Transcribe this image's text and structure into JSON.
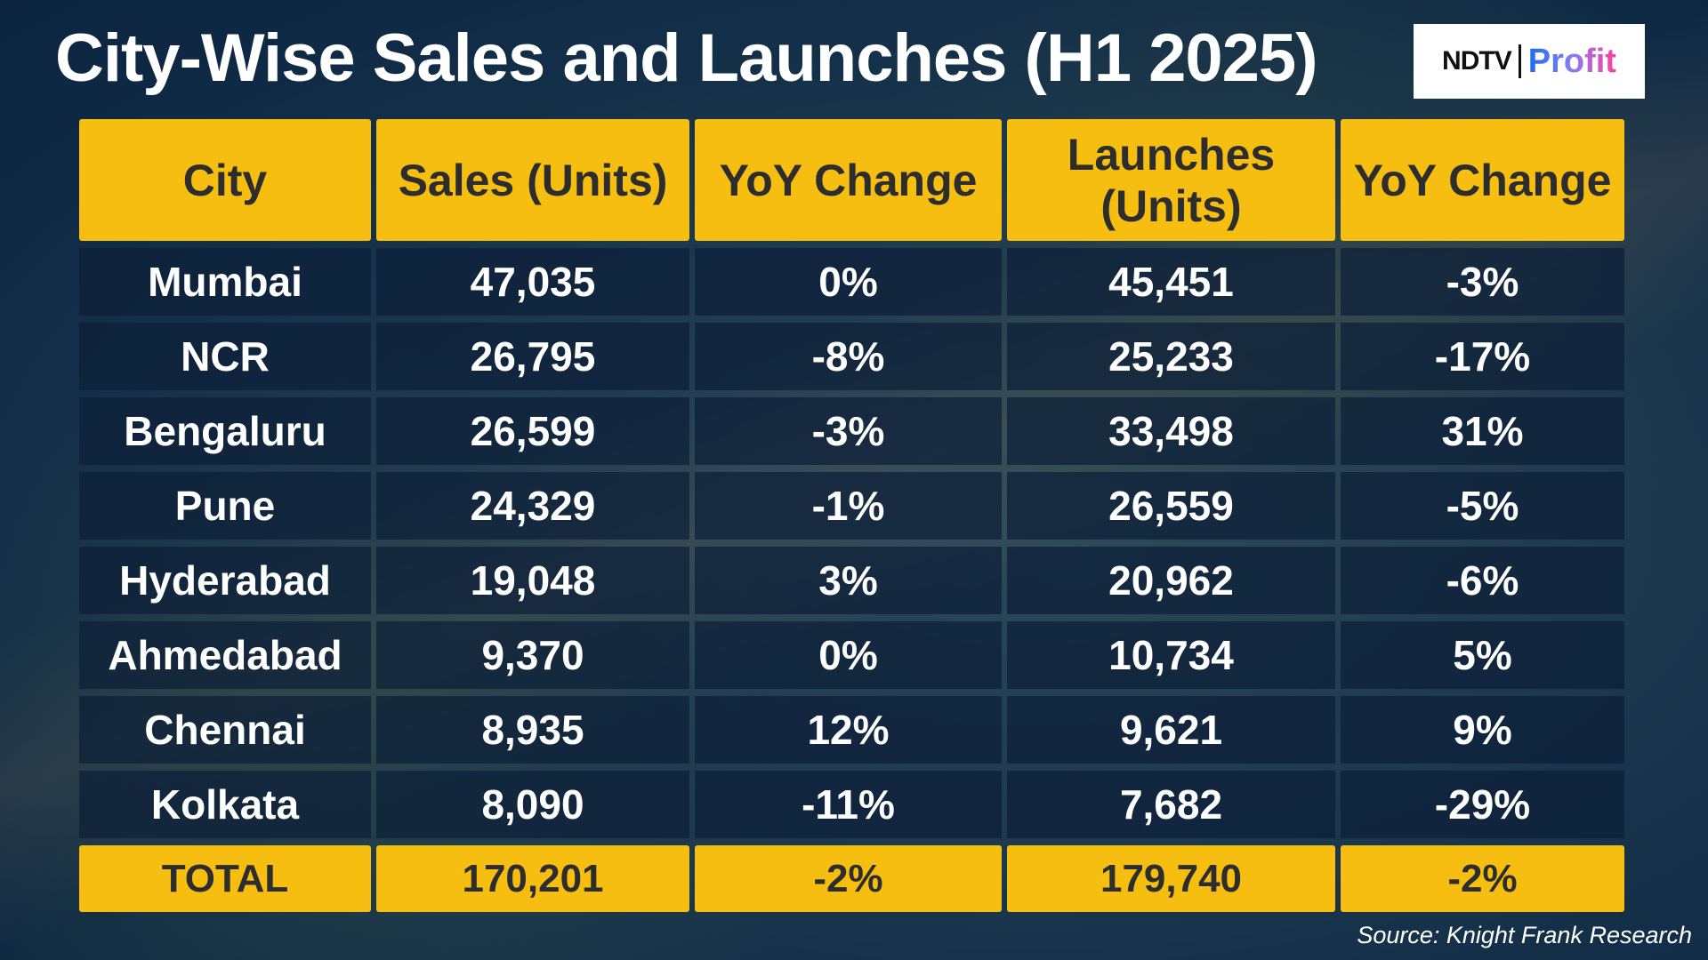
{
  "title": "City-Wise Sales and Launches (H1 2025)",
  "logo": {
    "left": "NDTV",
    "right": "Profit"
  },
  "headers": [
    "City",
    "Sales (Units)",
    "YoY Change",
    "Launches (Units)",
    "YoY Change"
  ],
  "rows": [
    [
      "Mumbai",
      "47,035",
      "0%",
      "45,451",
      "-3%"
    ],
    [
      "NCR",
      "26,795",
      "-8%",
      "25,233",
      "-17%"
    ],
    [
      "Bengaluru",
      "26,599",
      "-3%",
      "33,498",
      "31%"
    ],
    [
      "Pune",
      "24,329",
      "-1%",
      "26,559",
      "-5%"
    ],
    [
      "Hyderabad",
      "19,048",
      "3%",
      "20,962",
      "-6%"
    ],
    [
      "Ahmedabad",
      "9,370",
      "0%",
      "10,734",
      "5%"
    ],
    [
      "Chennai",
      "8,935",
      "12%",
      "9,621",
      "9%"
    ],
    [
      "Kolkata",
      "8,090",
      "-11%",
      "7,682",
      "-29%"
    ]
  ],
  "total": [
    "TOTAL",
    "170,201",
    "-2%",
    "179,740",
    "-2%"
  ],
  "source": "Source: Knight Frank Research",
  "colors": {
    "header": "#f7be12",
    "row": "#0c1e37"
  }
}
